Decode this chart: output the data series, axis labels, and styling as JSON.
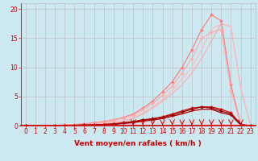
{
  "bg_color": "#cce8f0",
  "grid_color": "#bbbbbb",
  "xlabel": "Vent moyen/en rafales ( km/h )",
  "xlabel_color": "#cc0000",
  "xlabel_fontsize": 6.5,
  "tick_color": "#cc0000",
  "tick_fontsize": 5.5,
  "xlim": [
    -0.5,
    23.5
  ],
  "ylim": [
    0,
    21
  ],
  "xticks": [
    0,
    1,
    2,
    3,
    4,
    5,
    6,
    7,
    8,
    9,
    10,
    11,
    12,
    13,
    14,
    15,
    16,
    17,
    18,
    19,
    20,
    21,
    22,
    23
  ],
  "yticks": [
    0,
    5,
    10,
    15,
    20
  ],
  "line_light1_x": [
    0,
    3,
    4,
    5,
    6,
    7,
    8,
    9,
    10,
    11,
    12,
    13,
    14,
    15,
    16,
    17,
    18,
    19,
    20,
    21,
    22,
    23
  ],
  "line_light1_y": [
    0,
    0,
    0,
    0,
    0.1,
    0.2,
    0.3,
    0.5,
    0.7,
    1.2,
    2.0,
    3.0,
    4.2,
    5.5,
    7.0,
    9.0,
    11.5,
    14.5,
    17.5,
    17.0,
    6.5,
    0
  ],
  "line_light1_color": "#ffaaaa",
  "line_light1_lw": 0.8,
  "line_light2_x": [
    0,
    3,
    4,
    5,
    6,
    7,
    8,
    9,
    10,
    11,
    12,
    13,
    14,
    15,
    16,
    17,
    18,
    19,
    20,
    21,
    22,
    23
  ],
  "line_light2_y": [
    0,
    0,
    0.05,
    0.1,
    0.2,
    0.3,
    0.5,
    0.7,
    1.0,
    1.5,
    2.2,
    3.2,
    4.5,
    6.0,
    8.0,
    10.0,
    13.0,
    16.5,
    17.5,
    17.0,
    6.5,
    0
  ],
  "line_light2_color": "#ffbbbb",
  "line_light2_lw": 0.8,
  "line_med1_x": [
    0,
    2,
    3,
    4,
    5,
    6,
    7,
    8,
    9,
    10,
    11,
    12,
    13,
    14,
    15,
    16,
    17,
    18,
    19,
    20,
    21,
    22,
    23
  ],
  "line_med1_y": [
    0,
    0,
    0.05,
    0.1,
    0.2,
    0.3,
    0.5,
    0.7,
    1.0,
    1.4,
    2.0,
    3.0,
    4.2,
    5.8,
    7.5,
    10.0,
    13.0,
    16.5,
    19.0,
    18.0,
    7.0,
    0.2,
    0
  ],
  "line_med1_color": "#ff7777",
  "line_med1_lw": 0.8,
  "line_med1_marker": "+",
  "line_med2_x": [
    0,
    2,
    3,
    4,
    5,
    6,
    7,
    8,
    9,
    10,
    11,
    12,
    13,
    14,
    15,
    16,
    17,
    18,
    19,
    20,
    21,
    22,
    23
  ],
  "line_med2_y": [
    0,
    0,
    0.05,
    0.1,
    0.15,
    0.25,
    0.4,
    0.6,
    0.9,
    1.3,
    1.8,
    2.7,
    3.8,
    5.2,
    6.8,
    9.0,
    11.5,
    15.0,
    16.0,
    16.5,
    6.0,
    0.2,
    0
  ],
  "line_med2_color": "#ffaaaa",
  "line_med2_lw": 0.8,
  "line_med2_marker": "+",
  "line_dark1_x": [
    0,
    3,
    4,
    5,
    6,
    7,
    8,
    9,
    10,
    11,
    12,
    13,
    14,
    15,
    16,
    17,
    18,
    19,
    20,
    21,
    22,
    23
  ],
  "line_dark1_y": [
    0,
    0,
    0,
    0.05,
    0.1,
    0.15,
    0.2,
    0.3,
    0.5,
    0.7,
    1.0,
    1.2,
    1.5,
    2.0,
    2.5,
    3.0,
    3.2,
    3.2,
    2.8,
    2.2,
    0.2,
    0
  ],
  "line_dark1_color": "#cc0000",
  "line_dark1_lw": 0.9,
  "line_dark1_marker": "+",
  "line_dark2_x": [
    0,
    3,
    4,
    5,
    6,
    7,
    8,
    9,
    10,
    11,
    12,
    13,
    14,
    15,
    16,
    17,
    18,
    19,
    20,
    21,
    22,
    23
  ],
  "line_dark2_y": [
    0,
    0,
    0,
    0.05,
    0.1,
    0.1,
    0.2,
    0.25,
    0.4,
    0.6,
    0.9,
    1.1,
    1.4,
    1.8,
    2.3,
    2.8,
    3.2,
    3.0,
    2.5,
    2.0,
    0.1,
    0
  ],
  "line_dark2_color": "#990000",
  "line_dark2_lw": 0.9,
  "line_dark2_marker": "+",
  "line_dark3_x": [
    0,
    3,
    4,
    5,
    6,
    7,
    8,
    9,
    10,
    11,
    12,
    13,
    14,
    15,
    16,
    17,
    18,
    19,
    20,
    21,
    22,
    23
  ],
  "line_dark3_y": [
    0,
    0,
    0,
    0.05,
    0.08,
    0.12,
    0.18,
    0.22,
    0.35,
    0.5,
    0.75,
    0.95,
    1.2,
    1.6,
    2.0,
    2.5,
    2.8,
    2.8,
    2.2,
    1.8,
    0.1,
    0
  ],
  "line_dark3_color": "#aa0000",
  "line_dark3_lw": 0.9,
  "line_pale_x": [
    0,
    9,
    10,
    11,
    12,
    13,
    14,
    15,
    16,
    17,
    18,
    19,
    20,
    21,
    22,
    23
  ],
  "line_pale_y": [
    0,
    0,
    0.1,
    0.2,
    0.3,
    0.5,
    0.5,
    0.5,
    0.5,
    0.5,
    0.4,
    0.3,
    0.2,
    0.1,
    0.1,
    0
  ],
  "line_pale_color": "#ffcccc",
  "line_pale_lw": 0.8,
  "arrows_x": [
    11,
    12,
    13,
    14,
    15,
    16,
    17,
    18,
    19,
    20,
    21,
    22
  ],
  "arrows_color": "#cc0000",
  "left_spine_color": "#666666",
  "bottom_spine_color": "#cc0000"
}
